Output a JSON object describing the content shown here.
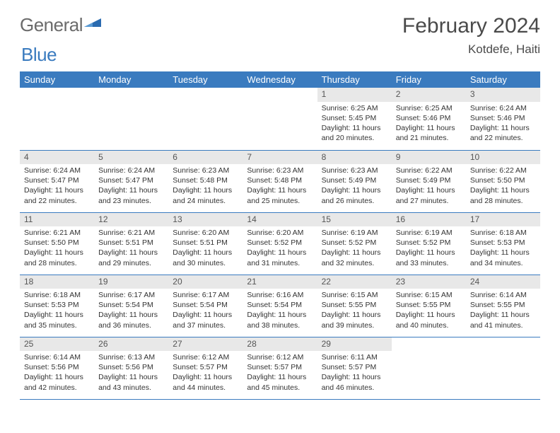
{
  "brand": {
    "word1": "General",
    "word2": "Blue",
    "word1_color": "#6b6b6b",
    "word2_color": "#3a7bbf",
    "mark_color": "#2a6bb0"
  },
  "title": "February 2024",
  "location": "Kotdefe, Haiti",
  "colors": {
    "header_bg": "#3a7bbf",
    "header_text": "#ffffff",
    "daynum_bg": "#e8e8e8",
    "border": "#3a7bbf",
    "body_text": "#333333"
  },
  "weekdays": [
    "Sunday",
    "Monday",
    "Tuesday",
    "Wednesday",
    "Thursday",
    "Friday",
    "Saturday"
  ],
  "first_weekday_index": 4,
  "days": [
    {
      "n": 1,
      "sunrise": "6:25 AM",
      "sunset": "5:45 PM",
      "daylight": "11 hours and 20 minutes."
    },
    {
      "n": 2,
      "sunrise": "6:25 AM",
      "sunset": "5:46 PM",
      "daylight": "11 hours and 21 minutes."
    },
    {
      "n": 3,
      "sunrise": "6:24 AM",
      "sunset": "5:46 PM",
      "daylight": "11 hours and 22 minutes."
    },
    {
      "n": 4,
      "sunrise": "6:24 AM",
      "sunset": "5:47 PM",
      "daylight": "11 hours and 22 minutes."
    },
    {
      "n": 5,
      "sunrise": "6:24 AM",
      "sunset": "5:47 PM",
      "daylight": "11 hours and 23 minutes."
    },
    {
      "n": 6,
      "sunrise": "6:23 AM",
      "sunset": "5:48 PM",
      "daylight": "11 hours and 24 minutes."
    },
    {
      "n": 7,
      "sunrise": "6:23 AM",
      "sunset": "5:48 PM",
      "daylight": "11 hours and 25 minutes."
    },
    {
      "n": 8,
      "sunrise": "6:23 AM",
      "sunset": "5:49 PM",
      "daylight": "11 hours and 26 minutes."
    },
    {
      "n": 9,
      "sunrise": "6:22 AM",
      "sunset": "5:49 PM",
      "daylight": "11 hours and 27 minutes."
    },
    {
      "n": 10,
      "sunrise": "6:22 AM",
      "sunset": "5:50 PM",
      "daylight": "11 hours and 28 minutes."
    },
    {
      "n": 11,
      "sunrise": "6:21 AM",
      "sunset": "5:50 PM",
      "daylight": "11 hours and 28 minutes."
    },
    {
      "n": 12,
      "sunrise": "6:21 AM",
      "sunset": "5:51 PM",
      "daylight": "11 hours and 29 minutes."
    },
    {
      "n": 13,
      "sunrise": "6:20 AM",
      "sunset": "5:51 PM",
      "daylight": "11 hours and 30 minutes."
    },
    {
      "n": 14,
      "sunrise": "6:20 AM",
      "sunset": "5:52 PM",
      "daylight": "11 hours and 31 minutes."
    },
    {
      "n": 15,
      "sunrise": "6:19 AM",
      "sunset": "5:52 PM",
      "daylight": "11 hours and 32 minutes."
    },
    {
      "n": 16,
      "sunrise": "6:19 AM",
      "sunset": "5:52 PM",
      "daylight": "11 hours and 33 minutes."
    },
    {
      "n": 17,
      "sunrise": "6:18 AM",
      "sunset": "5:53 PM",
      "daylight": "11 hours and 34 minutes."
    },
    {
      "n": 18,
      "sunrise": "6:18 AM",
      "sunset": "5:53 PM",
      "daylight": "11 hours and 35 minutes."
    },
    {
      "n": 19,
      "sunrise": "6:17 AM",
      "sunset": "5:54 PM",
      "daylight": "11 hours and 36 minutes."
    },
    {
      "n": 20,
      "sunrise": "6:17 AM",
      "sunset": "5:54 PM",
      "daylight": "11 hours and 37 minutes."
    },
    {
      "n": 21,
      "sunrise": "6:16 AM",
      "sunset": "5:54 PM",
      "daylight": "11 hours and 38 minutes."
    },
    {
      "n": 22,
      "sunrise": "6:15 AM",
      "sunset": "5:55 PM",
      "daylight": "11 hours and 39 minutes."
    },
    {
      "n": 23,
      "sunrise": "6:15 AM",
      "sunset": "5:55 PM",
      "daylight": "11 hours and 40 minutes."
    },
    {
      "n": 24,
      "sunrise": "6:14 AM",
      "sunset": "5:55 PM",
      "daylight": "11 hours and 41 minutes."
    },
    {
      "n": 25,
      "sunrise": "6:14 AM",
      "sunset": "5:56 PM",
      "daylight": "11 hours and 42 minutes."
    },
    {
      "n": 26,
      "sunrise": "6:13 AM",
      "sunset": "5:56 PM",
      "daylight": "11 hours and 43 minutes."
    },
    {
      "n": 27,
      "sunrise": "6:12 AM",
      "sunset": "5:57 PM",
      "daylight": "11 hours and 44 minutes."
    },
    {
      "n": 28,
      "sunrise": "6:12 AM",
      "sunset": "5:57 PM",
      "daylight": "11 hours and 45 minutes."
    },
    {
      "n": 29,
      "sunrise": "6:11 AM",
      "sunset": "5:57 PM",
      "daylight": "11 hours and 46 minutes."
    }
  ],
  "labels": {
    "sunrise": "Sunrise:",
    "sunset": "Sunset:",
    "daylight": "Daylight:"
  }
}
